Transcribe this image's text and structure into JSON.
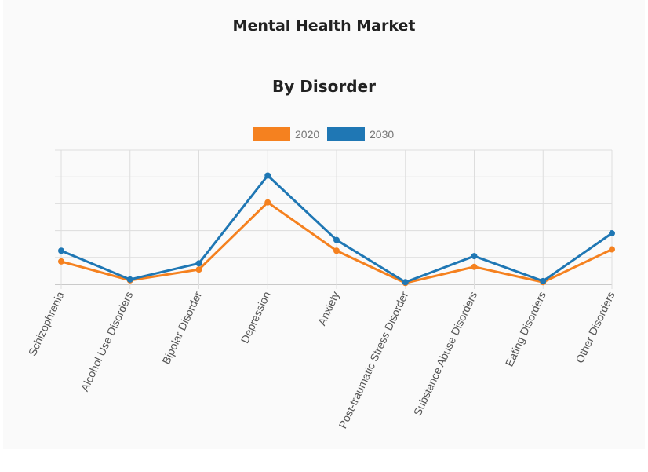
{
  "header": {
    "title": "Mental Health Market"
  },
  "chart_data": {
    "type": "line",
    "title": "By Disorder",
    "xlabel": "",
    "ylabel": "",
    "categories": [
      "Schizophrenia",
      "Alcohol Use Disorders",
      "Bipolar Disorder",
      "Depression",
      "Anxiety",
      "Post-traumatic Stress Disorder",
      "Substance Abuse Disorders",
      "Eating Disorders",
      "Other Disorders"
    ],
    "series": [
      {
        "name": "2020",
        "color": "#f5811f",
        "values": [
          0.85,
          0.15,
          0.55,
          3.05,
          1.25,
          0.05,
          0.65,
          0.08,
          1.3
        ]
      },
      {
        "name": "2030",
        "color": "#1f77b4",
        "values": [
          1.25,
          0.18,
          0.78,
          4.05,
          1.65,
          0.08,
          1.05,
          0.12,
          1.9
        ]
      }
    ],
    "ylim": [
      0,
      5
    ],
    "grid": true,
    "y_tick_labels_shown": false,
    "legend_position": "top"
  }
}
